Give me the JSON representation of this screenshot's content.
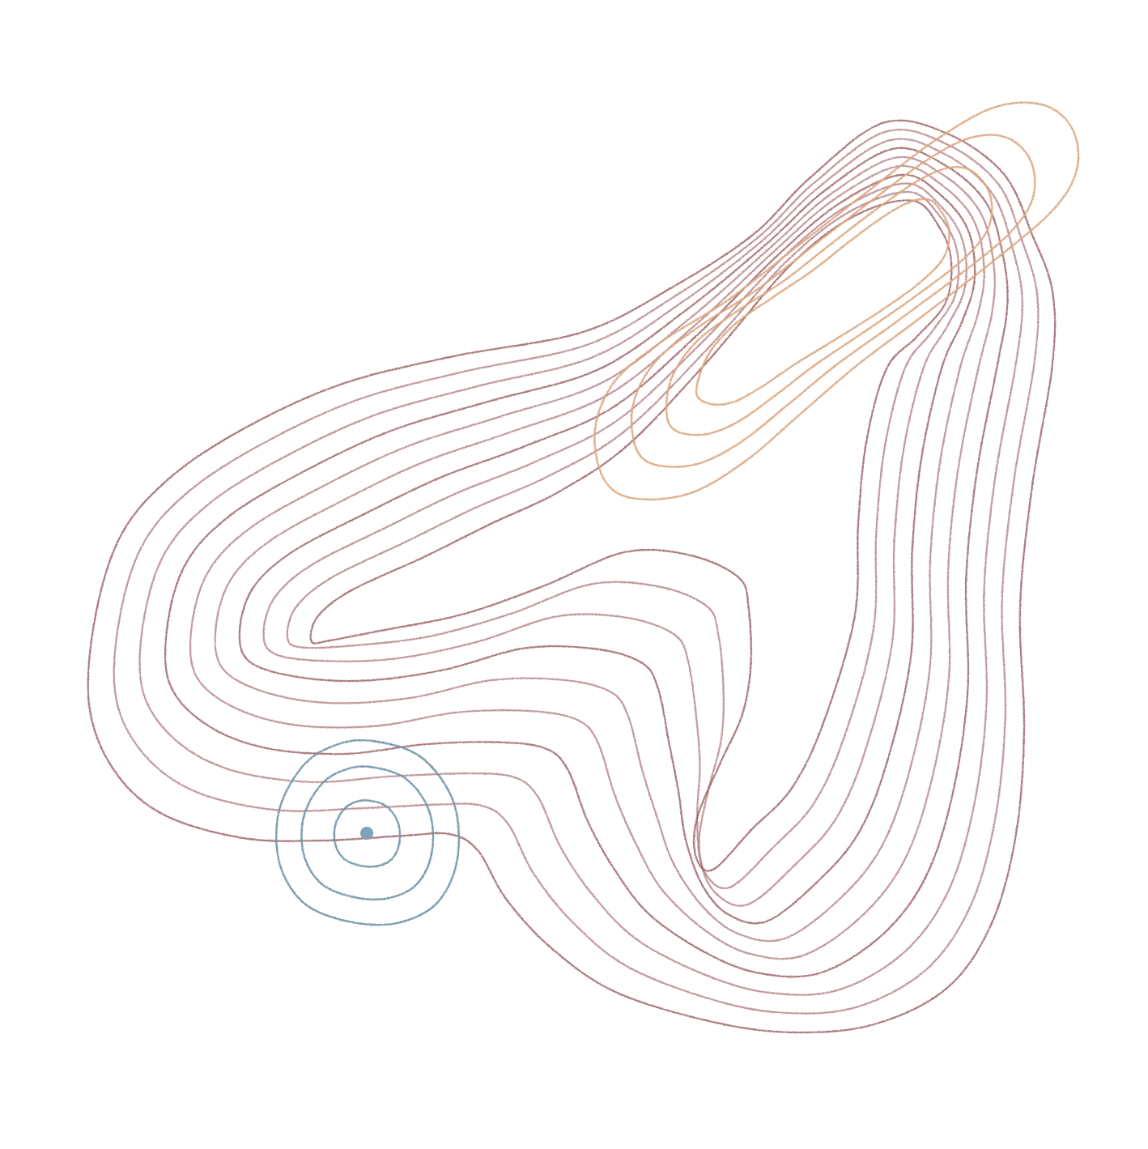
{
  "artwork": {
    "description_free": true,
    "palette": {
      "background": "#ffffff",
      "mauve": "#b07a80",
      "mauve_dark": "#93545b",
      "peach": "#dca77f",
      "blue": "#6f92a6",
      "blue_dot": "#7fa2b6"
    },
    "groups": [
      {
        "id": "mauve-contours",
        "color_key": "mauve",
        "line_count": 10
      },
      {
        "id": "peach-contours",
        "color_key": "peach",
        "line_count": 4
      },
      {
        "id": "blue-contours",
        "color_key": "blue",
        "line_count": 3
      }
    ]
  }
}
